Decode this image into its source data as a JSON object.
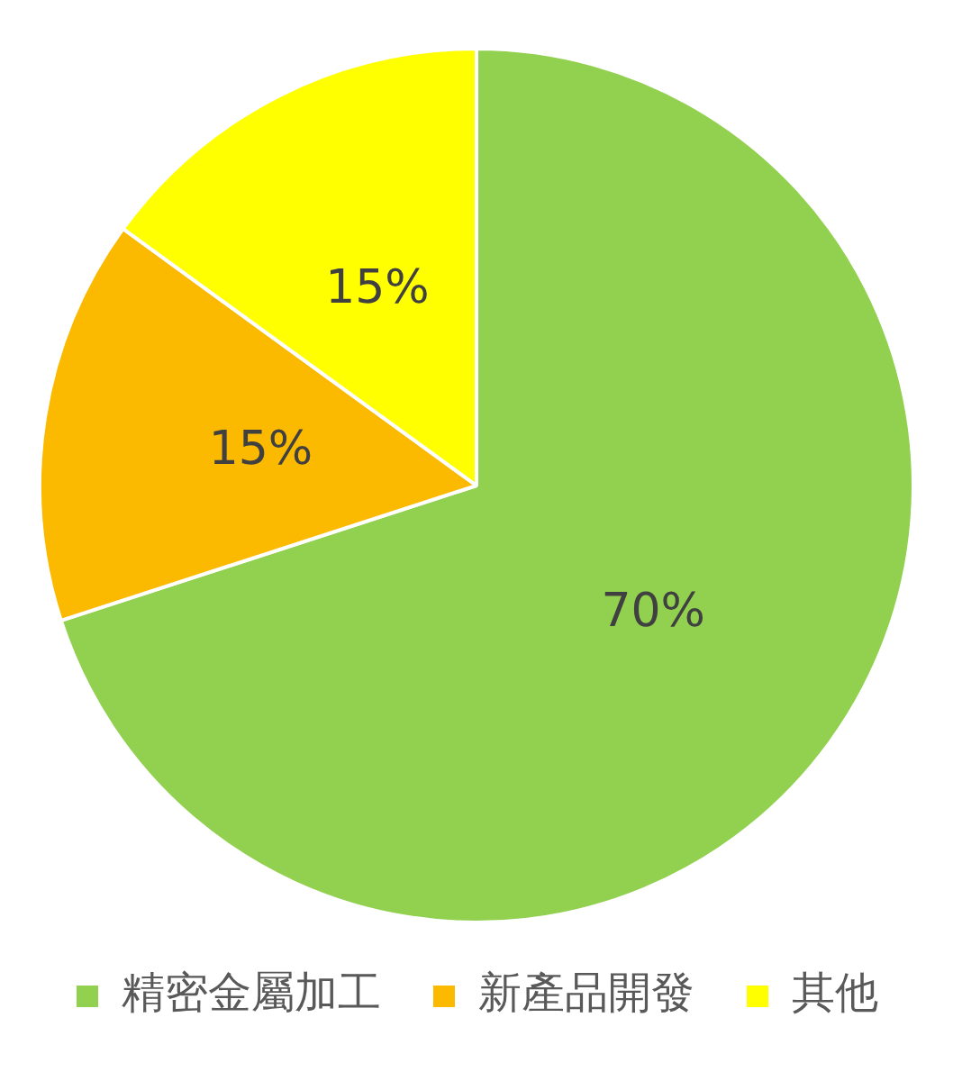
{
  "chart_data": {
    "type": "pie",
    "categories": [
      "精密金屬加工",
      "新產品開發",
      "其他"
    ],
    "values": [
      70,
      15,
      15
    ],
    "colors": [
      "#92d050",
      "#fbb900",
      "#ffff00"
    ],
    "value_labels": [
      "70%",
      "15%",
      "15%"
    ],
    "legend": "bottom"
  }
}
